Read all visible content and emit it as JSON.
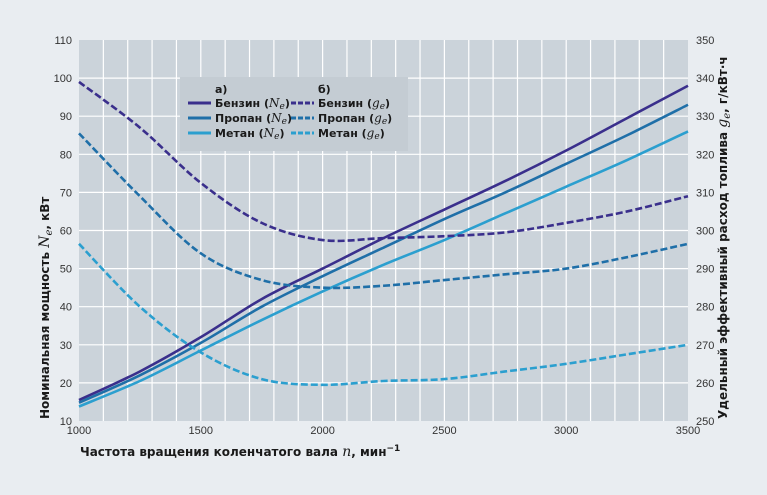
{
  "chart_data": {
    "type": "line",
    "title": "",
    "xlabel": "Частота вращения коленчатого вала n, мин⁻¹",
    "xlabel_parts": {
      "text": "Частота вращения коленчатого вала ",
      "var": "n",
      "unit": ", мин",
      "sup": "−1"
    },
    "ylabel_left": "Номинальная мощность Ne, кВт",
    "ylabel_left_parts": {
      "text": "Номинальная мощность ",
      "var": "N",
      "sub": "e",
      "unit": ", кВт"
    },
    "ylabel_right": "Удельный эффективный расход топлива ge, г/кВт·ч",
    "ylabel_right_parts": {
      "text": "Удельный эффективный расход топлива ",
      "var": "g",
      "sub": "e",
      "unit": ", г/кВт·ч"
    },
    "xlim": [
      1000,
      3500
    ],
    "ylim_left": [
      10,
      110
    ],
    "ylim_right": [
      250,
      350
    ],
    "x_ticks": [
      "1000",
      "1500",
      "2000",
      "2500",
      "3000",
      "3500"
    ],
    "y_ticks_left": [
      "10",
      "20",
      "30",
      "40",
      "50",
      "60",
      "70",
      "80",
      "90",
      "100",
      "110"
    ],
    "y_ticks_right": [
      "250",
      "260",
      "270",
      "280",
      "290",
      "300",
      "310",
      "320",
      "330",
      "340",
      "350"
    ],
    "grid": true,
    "x_grid_step": 100,
    "legend": {
      "placement": "top-left",
      "group_a": "а)",
      "group_b": "б)",
      "items_a": [
        {
          "name": "Бензин",
          "var": "N",
          "sub": "e"
        },
        {
          "name": "Пропан",
          "var": "N",
          "sub": "e"
        },
        {
          "name": "Метан",
          "var": "N",
          "sub": "e"
        }
      ],
      "items_b": [
        {
          "name": "Бензин",
          "var": "g",
          "sub": "e"
        },
        {
          "name": "Пропан",
          "var": "g",
          "sub": "e"
        },
        {
          "name": "Метан",
          "var": "g",
          "sub": "e"
        }
      ]
    },
    "x": [
      1000,
      1250,
      1500,
      1750,
      2000,
      2250,
      2500,
      2750,
      3000,
      3250,
      3500
    ],
    "series": [
      {
        "name": "Бензин (Ne)",
        "axis": "left",
        "style": "solid",
        "color": "#3a2f8c",
        "values": [
          15.5,
          23,
          32,
          42,
          50,
          58,
          65.5,
          73,
          81,
          89.5,
          98
        ]
      },
      {
        "name": "Пропан (Ne)",
        "axis": "left",
        "style": "solid",
        "color": "#1f6fa8",
        "values": [
          14.8,
          22,
          30.5,
          40,
          48,
          55.5,
          63,
          70,
          77.5,
          85,
          93
        ]
      },
      {
        "name": "Метан (Ne)",
        "axis": "left",
        "style": "solid",
        "color": "#2b9fcf",
        "values": [
          13.8,
          20.5,
          28.5,
          36.5,
          44,
          51,
          57.5,
          64.5,
          71.5,
          78.5,
          86
        ]
      },
      {
        "name": "Бензин (ge)",
        "axis": "right",
        "style": "dashed",
        "color": "#3a2f8c",
        "values": [
          339,
          327,
          312.5,
          302,
          297.5,
          298,
          298.5,
          299.5,
          302,
          305,
          309
        ]
      },
      {
        "name": "Пропан (ge)",
        "axis": "right",
        "style": "dashed",
        "color": "#1f6fa8",
        "values": [
          325.5,
          309,
          294,
          287,
          285,
          285.5,
          287,
          288.5,
          290,
          293,
          296.5
        ]
      },
      {
        "name": "Метан (ge)",
        "axis": "right",
        "style": "dashed",
        "color": "#2b9fcf",
        "values": [
          296.5,
          280,
          268,
          261,
          259.5,
          260.5,
          261,
          263,
          265,
          267.5,
          270
        ]
      }
    ],
    "colors": {
      "plot_bg": "#cbd3da",
      "grid": "#ffffff",
      "page_bg": "#e9edf1",
      "legend_bg": "#c4ccd3"
    }
  }
}
